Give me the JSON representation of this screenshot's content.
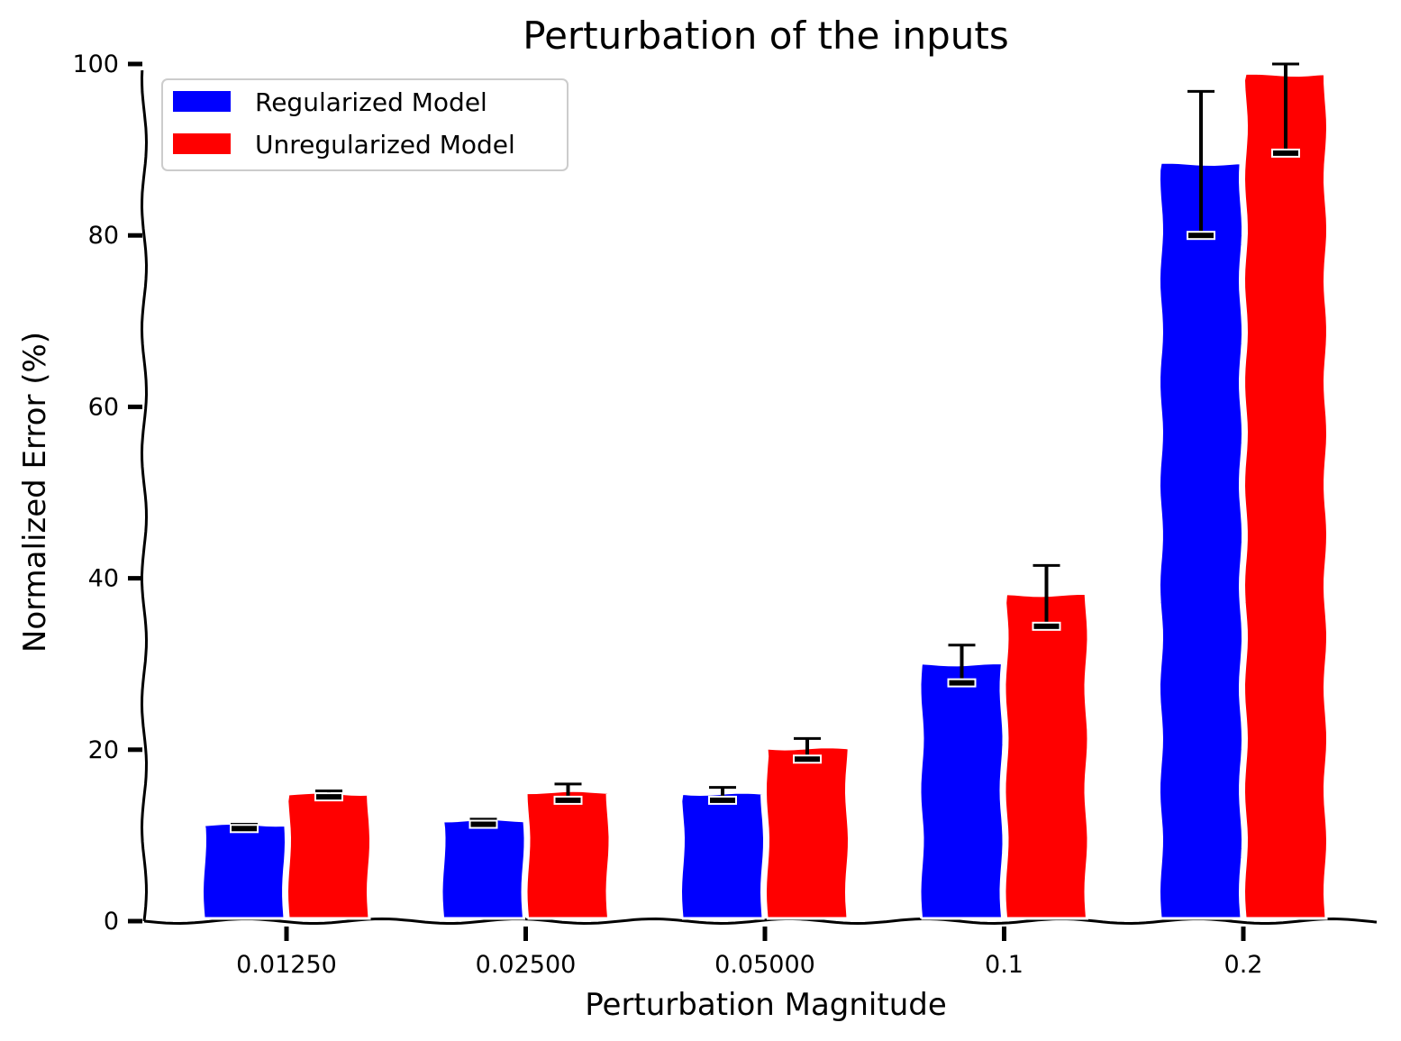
{
  "chart_data": {
    "type": "bar",
    "title": "Perturbation of the inputs",
    "xlabel": "Perturbation Magnitude",
    "ylabel": "Normalized Error (%)",
    "categories": [
      "0.01250",
      "0.02500",
      "0.05000",
      "0.1",
      "0.2"
    ],
    "ylim": [
      0,
      100
    ],
    "yticks": [
      "0",
      "20",
      "40",
      "60",
      "80",
      "100"
    ],
    "grid": false,
    "legend_position": "top-left",
    "series": [
      {
        "name": "Regularized Model",
        "color": "#0000ff",
        "values": [
          11.3,
          11.8,
          14.9,
          30.0,
          88.4
        ],
        "err_low": [
          10.8,
          11.3,
          14.1,
          27.8,
          80.0
        ],
        "err_high": [
          11.3,
          11.9,
          15.6,
          32.2,
          96.8
        ]
      },
      {
        "name": "Unregularized Model",
        "color": "#ff0000",
        "values": [
          14.9,
          15.1,
          20.2,
          38.1,
          98.8
        ],
        "err_low": [
          14.5,
          14.1,
          18.9,
          34.4,
          89.6
        ],
        "err_high": [
          15.2,
          16.0,
          21.3,
          41.5,
          100.0
        ]
      }
    ]
  }
}
